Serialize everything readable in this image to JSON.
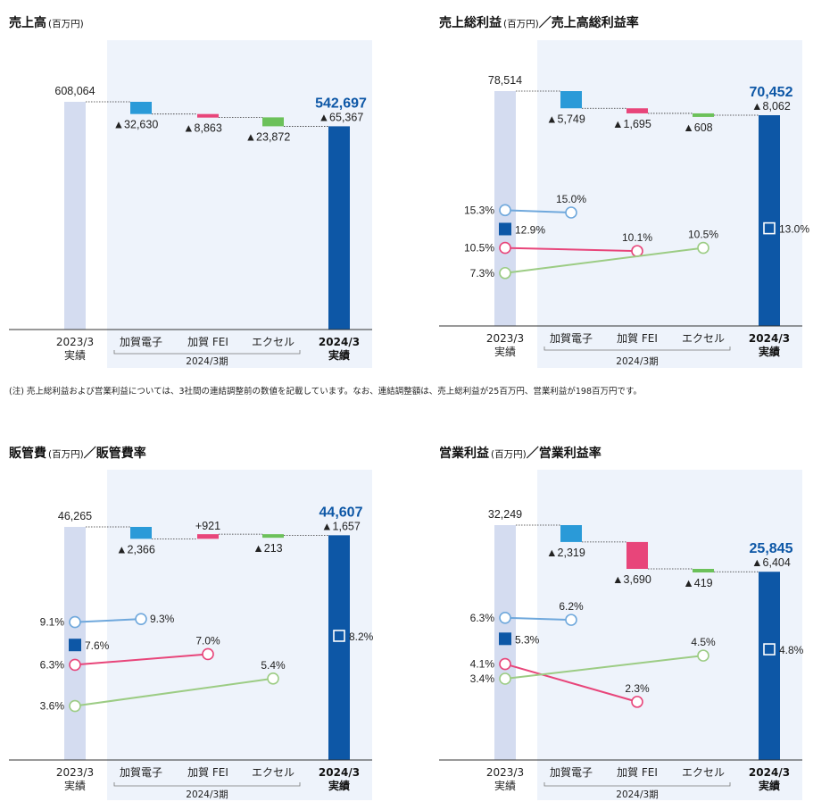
{
  "note": "(注) 売上総利益および営業利益については、3社間の連結調整前の数値を記載しています。なお、連結調整額は、売上総利益が25百万円、営業利益が198百万円です。",
  "chart_data": [
    {
      "type": "bar",
      "title": "売上高",
      "unit": "(百万円)",
      "categories": [
        "2023/3\n実績",
        "加賀電子",
        "加賀 FEI",
        "エクセル",
        "2024/3\n実績"
      ],
      "period_label": "2024/3期",
      "start": {
        "value": 608064,
        "label": "608,064"
      },
      "steps": [
        {
          "value": -32630,
          "label": "▲32,630",
          "color": "#2a9ad8"
        },
        {
          "value": -8863,
          "label": "▲8,863",
          "color": "#e8457a"
        },
        {
          "value": -23872,
          "label": "▲23,872",
          "color": "#6cc15a"
        }
      ],
      "end": {
        "value": 542697,
        "label": "542,697",
        "change": "▲65,367"
      },
      "ylim": [
        0,
        660000
      ],
      "ratio": null
    },
    {
      "type": "bar",
      "title": "売上総利益",
      "unit": "(百万円)",
      "title2": "／売上高総利益率",
      "categories": [
        "2023/3\n実績",
        "加賀電子",
        "加賀 FEI",
        "エクセル",
        "2024/3\n実績"
      ],
      "period_label": "2024/3期",
      "start": {
        "value": 78514,
        "label": "78,514"
      },
      "steps": [
        {
          "value": -5749,
          "label": "▲5,749",
          "color": "#2a9ad8"
        },
        {
          "value": -1695,
          "label": "▲1,695",
          "color": "#e8457a"
        },
        {
          "value": -608,
          "label": "▲608",
          "color": "#6cc15a"
        }
      ],
      "end": {
        "value": 70452,
        "label": "70,452",
        "change": "▲8,062"
      },
      "ylim": [
        0,
        84000
      ],
      "ratio": {
        "ylim": [
          0,
          25
        ],
        "start_marker": {
          "value": 12.9,
          "label": "12.9%"
        },
        "end_marker": {
          "value": 13.0,
          "label": "13.0%"
        },
        "lines": [
          {
            "color": "#6fa8dc",
            "from": {
              "value": 15.3,
              "label": "15.3%"
            },
            "to": {
              "value": 15.0,
              "label": "15.0%"
            },
            "to_cat": 1
          },
          {
            "color": "#e8457a",
            "from": {
              "value": 10.5,
              "label": "10.5%"
            },
            "to": {
              "value": 10.1,
              "label": "10.1%"
            },
            "to_cat": 2
          },
          {
            "color": "#9ccc84",
            "from": {
              "value": 7.3,
              "label": "7.3%"
            },
            "to": {
              "value": 10.5,
              "label": "10.5%"
            },
            "to_cat": 3
          }
        ]
      }
    },
    {
      "type": "bar",
      "title": "販管費",
      "unit": "(百万円)",
      "title2": "／販管費率",
      "categories": [
        "2023/3\n実績",
        "加賀電子",
        "加賀 FEI",
        "エクセル",
        "2024/3\n実績"
      ],
      "period_label": "2024/3期",
      "start": {
        "value": 46265,
        "label": "46,265"
      },
      "steps": [
        {
          "value": -2366,
          "label": "▲2,366",
          "color": "#2a9ad8"
        },
        {
          "value": 921,
          "label": "+921",
          "color": "#e8457a"
        },
        {
          "value": -213,
          "label": "▲213",
          "color": "#6cc15a"
        }
      ],
      "end": {
        "value": 44607,
        "label": "44,607",
        "change": "▲1,657"
      },
      "ylim": [
        0,
        50000
      ],
      "ratio": {
        "ylim": [
          0,
          13
        ],
        "start_marker": {
          "value": 7.6,
          "label": "7.6%"
        },
        "end_marker": {
          "value": 8.2,
          "label": "8.2%"
        },
        "lines": [
          {
            "color": "#6fa8dc",
            "from": {
              "value": 9.1,
              "label": "9.1%"
            },
            "to": {
              "value": 9.3,
              "label": "9.3%"
            },
            "to_cat": 1
          },
          {
            "color": "#e8457a",
            "from": {
              "value": 6.3,
              "label": "6.3%"
            },
            "to": {
              "value": 7.0,
              "label": "7.0%"
            },
            "to_cat": 2
          },
          {
            "color": "#9ccc84",
            "from": {
              "value": 3.6,
              "label": "3.6%"
            },
            "to": {
              "value": 5.4,
              "label": "5.4%"
            },
            "to_cat": 3
          }
        ]
      }
    },
    {
      "type": "bar",
      "title": "営業利益",
      "unit": "(百万円)",
      "title2": "／営業利益率",
      "categories": [
        "2023/3\n実績",
        "加賀電子",
        "加賀 FEI",
        "エクセル",
        "2024/3\n実績"
      ],
      "period_label": "2024/3期",
      "start": {
        "value": 32249,
        "label": "32,249"
      },
      "steps": [
        {
          "value": -2319,
          "label": "▲2,319",
          "color": "#2a9ad8"
        },
        {
          "value": -3690,
          "label": "▲3,690",
          "color": "#e8457a"
        },
        {
          "value": -419,
          "label": "▲419",
          "color": "#6cc15a"
        }
      ],
      "end": {
        "value": 25845,
        "label": "25,845",
        "change": "▲6,404"
      },
      "ylim": [
        0,
        34500
      ],
      "ratio": {
        "ylim": [
          0,
          8.5
        ],
        "start_marker": {
          "value": 5.3,
          "label": "5.3%"
        },
        "end_marker": {
          "value": 4.8,
          "label": "4.8%"
        },
        "lines": [
          {
            "color": "#6fa8dc",
            "from": {
              "value": 6.3,
              "label": "6.3%"
            },
            "to": {
              "value": 6.2,
              "label": "6.2%"
            },
            "to_cat": 1
          },
          {
            "color": "#e8457a",
            "from": {
              "value": 4.1,
              "label": "4.1%"
            },
            "to": {
              "value": 2.3,
              "label": "2.3%"
            },
            "to_cat": 2
          },
          {
            "color": "#9ccc84",
            "from": {
              "value": 3.4,
              "label": "3.4%"
            },
            "to": {
              "value": 4.5,
              "label": "4.5%"
            },
            "to_cat": 3
          }
        ]
      }
    }
  ]
}
